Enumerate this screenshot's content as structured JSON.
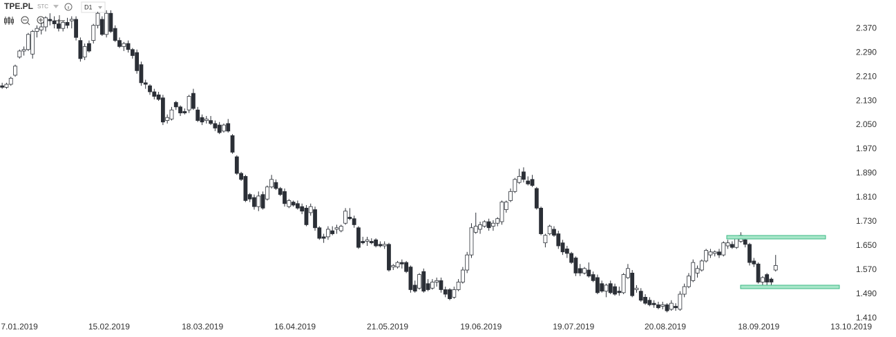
{
  "toolbar": {
    "symbol": "TPE.PL",
    "market": "STC",
    "interval": "D1"
  },
  "chart_data": {
    "type": "candlestick",
    "series": [
      {
        "open": [
          2.18,
          2.175,
          2.185,
          2.215,
          2.275,
          2.295,
          2.3,
          2.285,
          2.36,
          2.365,
          2.375,
          2.4,
          2.395,
          2.385,
          2.37,
          2.39,
          2.395,
          2.4,
          2.33,
          2.275,
          2.32,
          2.33,
          2.38,
          2.4,
          2.35,
          2.42,
          2.37,
          2.33,
          2.31,
          2.32,
          2.3,
          2.29,
          2.25,
          2.19,
          2.18,
          2.16,
          2.15,
          2.14,
          2.065,
          2.07,
          2.125,
          2.11,
          2.095,
          2.1,
          2.155,
          2.1,
          2.075,
          2.065,
          2.065,
          2.055,
          2.05,
          2.03,
          2.055,
          2.015,
          1.945,
          1.89,
          1.88,
          1.82,
          1.81,
          1.78,
          1.82,
          1.805,
          1.845,
          1.86,
          1.84,
          1.83,
          1.78,
          1.795,
          1.79,
          1.78,
          1.775,
          1.76,
          1.77,
          1.71,
          1.68,
          1.68,
          1.7,
          1.705,
          1.7,
          1.725,
          1.745,
          1.74,
          1.71,
          1.665,
          1.665,
          1.665,
          1.67,
          1.655,
          1.65,
          1.655,
          1.58,
          1.58,
          1.595,
          1.595,
          1.58,
          1.52,
          1.51,
          1.565,
          1.525,
          1.51,
          1.53,
          1.535,
          1.505,
          1.505,
          1.48,
          1.505,
          1.53,
          1.57,
          1.62,
          1.695,
          1.705,
          1.715,
          1.73,
          1.715,
          1.725,
          1.73,
          1.77,
          1.8,
          1.83,
          1.86,
          1.895,
          1.865,
          1.87,
          1.84,
          1.775,
          1.66,
          1.69,
          1.705,
          1.69,
          1.66,
          1.64,
          1.625,
          1.61,
          1.575,
          1.56,
          1.57,
          1.555,
          1.545,
          1.525,
          1.5,
          1.525,
          1.515,
          1.5,
          1.495,
          1.545,
          1.56,
          1.505,
          1.5,
          1.48,
          1.47,
          1.46,
          1.455,
          1.45,
          1.455,
          1.44,
          1.45,
          1.44,
          1.49,
          1.515,
          1.535,
          1.56,
          1.57,
          1.6,
          1.62,
          1.625,
          1.63,
          1.62,
          1.65,
          1.655,
          1.645,
          1.665,
          1.67,
          1.655,
          1.6,
          1.59,
          1.53,
          1.555,
          1.54,
          1.57
        ],
        "high": [
          2.19,
          2.19,
          2.21,
          2.25,
          2.3,
          2.31,
          2.355,
          2.365,
          2.38,
          2.39,
          2.41,
          2.42,
          2.41,
          2.4,
          2.395,
          2.405,
          2.41,
          2.41,
          2.34,
          2.32,
          2.33,
          2.385,
          2.425,
          2.41,
          2.43,
          2.43,
          2.38,
          2.34,
          2.325,
          2.33,
          2.305,
          2.3,
          2.26,
          2.2,
          2.185,
          2.17,
          2.16,
          2.15,
          2.085,
          2.11,
          2.13,
          2.115,
          2.105,
          2.15,
          2.17,
          2.11,
          2.085,
          2.08,
          2.08,
          2.065,
          2.06,
          2.055,
          2.07,
          2.02,
          1.95,
          1.895,
          1.885,
          1.825,
          1.82,
          1.83,
          1.83,
          1.85,
          1.885,
          1.87,
          1.845,
          1.84,
          1.805,
          1.8,
          1.8,
          1.79,
          1.785,
          1.79,
          1.78,
          1.715,
          1.69,
          1.715,
          1.715,
          1.72,
          1.72,
          1.775,
          1.775,
          1.75,
          1.715,
          1.68,
          1.68,
          1.675,
          1.675,
          1.665,
          1.665,
          1.66,
          1.59,
          1.6,
          1.605,
          1.6,
          1.585,
          1.535,
          1.56,
          1.575,
          1.54,
          1.54,
          1.545,
          1.545,
          1.515,
          1.51,
          1.515,
          1.54,
          1.58,
          1.63,
          1.725,
          1.76,
          1.73,
          1.735,
          1.74,
          1.735,
          1.745,
          1.8,
          1.8,
          1.84,
          1.875,
          1.905,
          1.91,
          1.88,
          1.885,
          1.845,
          1.78,
          1.69,
          1.72,
          1.715,
          1.7,
          1.67,
          1.65,
          1.63,
          1.615,
          1.59,
          1.58,
          1.595,
          1.565,
          1.555,
          1.535,
          1.525,
          1.535,
          1.525,
          1.515,
          1.56,
          1.59,
          1.57,
          1.52,
          1.51,
          1.49,
          1.48,
          1.47,
          1.465,
          1.465,
          1.46,
          1.47,
          1.46,
          1.5,
          1.525,
          1.56,
          1.605,
          1.585,
          1.605,
          1.64,
          1.64,
          1.635,
          1.64,
          1.665,
          1.67,
          1.665,
          1.68,
          1.695,
          1.68,
          1.66,
          1.61,
          1.595,
          1.55,
          1.56,
          1.545,
          1.62
        ],
        "low": [
          2.17,
          2.17,
          2.18,
          2.21,
          2.27,
          2.28,
          2.295,
          2.27,
          2.34,
          2.35,
          2.36,
          2.38,
          2.37,
          2.36,
          2.36,
          2.37,
          2.37,
          2.33,
          2.26,
          2.265,
          2.29,
          2.32,
          2.37,
          2.345,
          2.34,
          2.355,
          2.325,
          2.305,
          2.295,
          2.29,
          2.27,
          2.22,
          2.18,
          2.17,
          2.15,
          2.135,
          2.13,
          2.05,
          2.055,
          2.065,
          2.1,
          2.08,
          2.085,
          2.09,
          2.1,
          2.06,
          2.05,
          2.055,
          2.05,
          2.03,
          2.02,
          2.025,
          2.025,
          1.955,
          1.885,
          1.865,
          1.795,
          1.795,
          1.77,
          1.765,
          1.77,
          1.8,
          1.84,
          1.835,
          1.815,
          1.78,
          1.775,
          1.78,
          1.77,
          1.755,
          1.715,
          1.75,
          1.7,
          1.67,
          1.66,
          1.67,
          1.685,
          1.69,
          1.695,
          1.72,
          1.735,
          1.71,
          1.64,
          1.655,
          1.65,
          1.655,
          1.645,
          1.645,
          1.64,
          1.565,
          1.57,
          1.575,
          1.575,
          1.56,
          1.495,
          1.495,
          1.505,
          1.495,
          1.5,
          1.505,
          1.515,
          1.495,
          1.48,
          1.47,
          1.475,
          1.5,
          1.525,
          1.56,
          1.61,
          1.69,
          1.69,
          1.71,
          1.7,
          1.7,
          1.715,
          1.72,
          1.76,
          1.795,
          1.825,
          1.855,
          1.86,
          1.85,
          1.845,
          1.77,
          1.685,
          1.645,
          1.685,
          1.68,
          1.64,
          1.62,
          1.61,
          1.59,
          1.55,
          1.55,
          1.555,
          1.545,
          1.53,
          1.49,
          1.495,
          1.48,
          1.49,
          1.485,
          1.485,
          1.49,
          1.54,
          1.48,
          1.495,
          1.465,
          1.455,
          1.45,
          1.445,
          1.44,
          1.44,
          1.43,
          1.435,
          1.435,
          1.435,
          1.48,
          1.51,
          1.53,
          1.545,
          1.565,
          1.595,
          1.61,
          1.615,
          1.61,
          1.615,
          1.64,
          1.64,
          1.64,
          1.66,
          1.645,
          1.585,
          1.58,
          1.525,
          1.52,
          1.52,
          1.515,
          1.565
        ],
        "close": [
          2.175,
          2.185,
          2.205,
          2.245,
          2.295,
          2.3,
          2.35,
          2.36,
          2.37,
          2.375,
          2.405,
          2.395,
          2.385,
          2.37,
          2.39,
          2.38,
          2.4,
          2.34,
          2.27,
          2.31,
          2.295,
          2.38,
          2.42,
          2.35,
          2.42,
          2.36,
          2.33,
          2.31,
          2.32,
          2.3,
          2.28,
          2.23,
          2.19,
          2.185,
          2.16,
          2.145,
          2.135,
          2.06,
          2.075,
          2.1,
          2.11,
          2.09,
          2.09,
          2.145,
          2.105,
          2.065,
          2.06,
          2.07,
          2.055,
          2.04,
          2.025,
          2.05,
          2.03,
          1.96,
          1.89,
          1.87,
          1.8,
          1.805,
          1.78,
          1.815,
          1.775,
          1.845,
          1.87,
          1.84,
          1.82,
          1.79,
          1.8,
          1.785,
          1.775,
          1.765,
          1.72,
          1.78,
          1.71,
          1.675,
          1.675,
          1.705,
          1.69,
          1.71,
          1.715,
          1.765,
          1.74,
          1.72,
          1.645,
          1.66,
          1.67,
          1.66,
          1.65,
          1.65,
          1.655,
          1.57,
          1.585,
          1.595,
          1.59,
          1.565,
          1.505,
          1.5,
          1.555,
          1.5,
          1.505,
          1.53,
          1.535,
          1.505,
          1.49,
          1.475,
          1.505,
          1.53,
          1.57,
          1.62,
          1.71,
          1.715,
          1.72,
          1.73,
          1.71,
          1.725,
          1.74,
          1.795,
          1.795,
          1.83,
          1.87,
          1.88,
          1.87,
          1.855,
          1.85,
          1.775,
          1.69,
          1.685,
          1.715,
          1.685,
          1.65,
          1.63,
          1.625,
          1.595,
          1.56,
          1.56,
          1.575,
          1.55,
          1.535,
          1.495,
          1.5,
          1.52,
          1.495,
          1.49,
          1.495,
          1.555,
          1.575,
          1.485,
          1.51,
          1.47,
          1.46,
          1.455,
          1.455,
          1.445,
          1.455,
          1.435,
          1.46,
          1.445,
          1.49,
          1.515,
          1.55,
          1.595,
          1.575,
          1.6,
          1.635,
          1.63,
          1.63,
          1.62,
          1.66,
          1.66,
          1.645,
          1.675,
          1.685,
          1.655,
          1.595,
          1.59,
          1.53,
          1.545,
          1.53,
          1.53,
          1.585
        ]
      }
    ],
    "up_color": "#ffffff",
    "down_color": "#2b2f36",
    "xlim": [
      -0.5,
      205.7
    ],
    "xticks": [
      {
        "value": 3.97,
        "label": "7.01.2019"
      },
      {
        "value": 24.6,
        "label": "15.02.2019"
      },
      {
        "value": 46.1,
        "label": "18.03.2019"
      },
      {
        "value": 67.4,
        "label": "16.04.2019"
      },
      {
        "value": 88.7,
        "label": "21.05.2019"
      },
      {
        "value": 110.2,
        "label": "19.06.2019"
      },
      {
        "value": 131.5,
        "label": "19.07.2019"
      },
      {
        "value": 152.6,
        "label": "20.08.2019"
      },
      {
        "value": 174.1,
        "label": "18.09.2019"
      },
      {
        "value": 195.4,
        "label": "13.10.2019"
      }
    ],
    "ylim": [
      1.394,
      2.464
    ],
    "yticks": [
      {
        "value": 2.37,
        "label": "2.370"
      },
      {
        "value": 2.29,
        "label": "2.290"
      },
      {
        "value": 2.21,
        "label": "2.210"
      },
      {
        "value": 2.13,
        "label": "2.130"
      },
      {
        "value": 2.05,
        "label": "2.050"
      },
      {
        "value": 1.97,
        "label": "1.970"
      },
      {
        "value": 1.89,
        "label": "1.890"
      },
      {
        "value": 1.81,
        "label": "1.810"
      },
      {
        "value": 1.73,
        "label": "1.730"
      },
      {
        "value": 1.65,
        "label": "1.650"
      },
      {
        "value": 1.57,
        "label": "1.570"
      },
      {
        "value": 1.49,
        "label": "1.490"
      },
      {
        "value": 1.41,
        "label": "1.410"
      }
    ],
    "grid": false
  }
}
